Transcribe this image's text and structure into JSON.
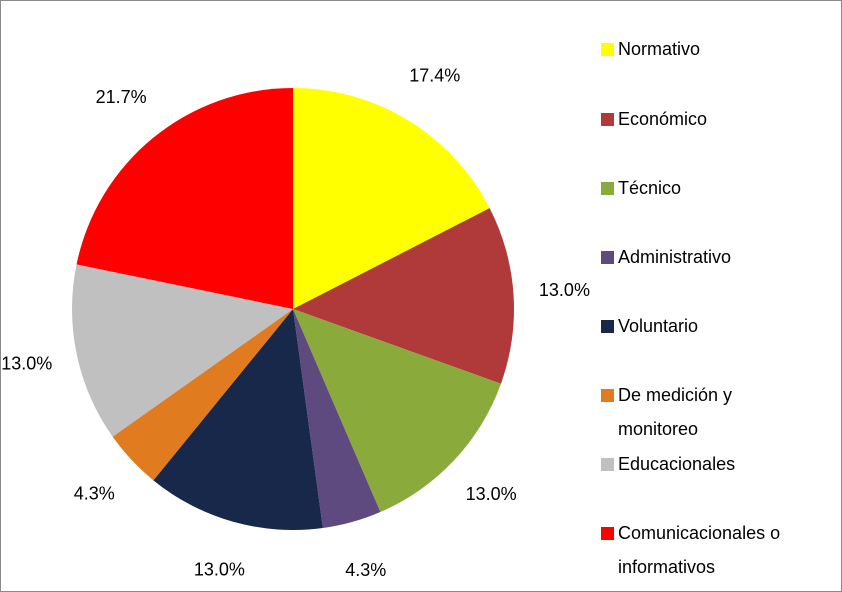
{
  "chart_data": {
    "type": "pie",
    "categories": [
      "Normativo",
      "Económico",
      "Técnico",
      "Administrativo",
      "Voluntario",
      "De medición y monitoreo",
      "Educacionales",
      "Comunicacionales o informativos"
    ],
    "values": [
      17.4,
      13.0,
      13.0,
      4.3,
      13.0,
      4.3,
      13.0,
      21.7
    ],
    "value_labels": [
      "17.4%",
      "13.0%",
      "13.0%",
      "4.3%",
      "13.0%",
      "4.3%",
      "13.0%",
      "21.7%"
    ],
    "colors": [
      "#ffff00",
      "#b03a3a",
      "#8aab3c",
      "#5f4a7f",
      "#17284a",
      "#e07b20",
      "#c0c0c0",
      "#ff0000"
    ],
    "legend": "right"
  }
}
